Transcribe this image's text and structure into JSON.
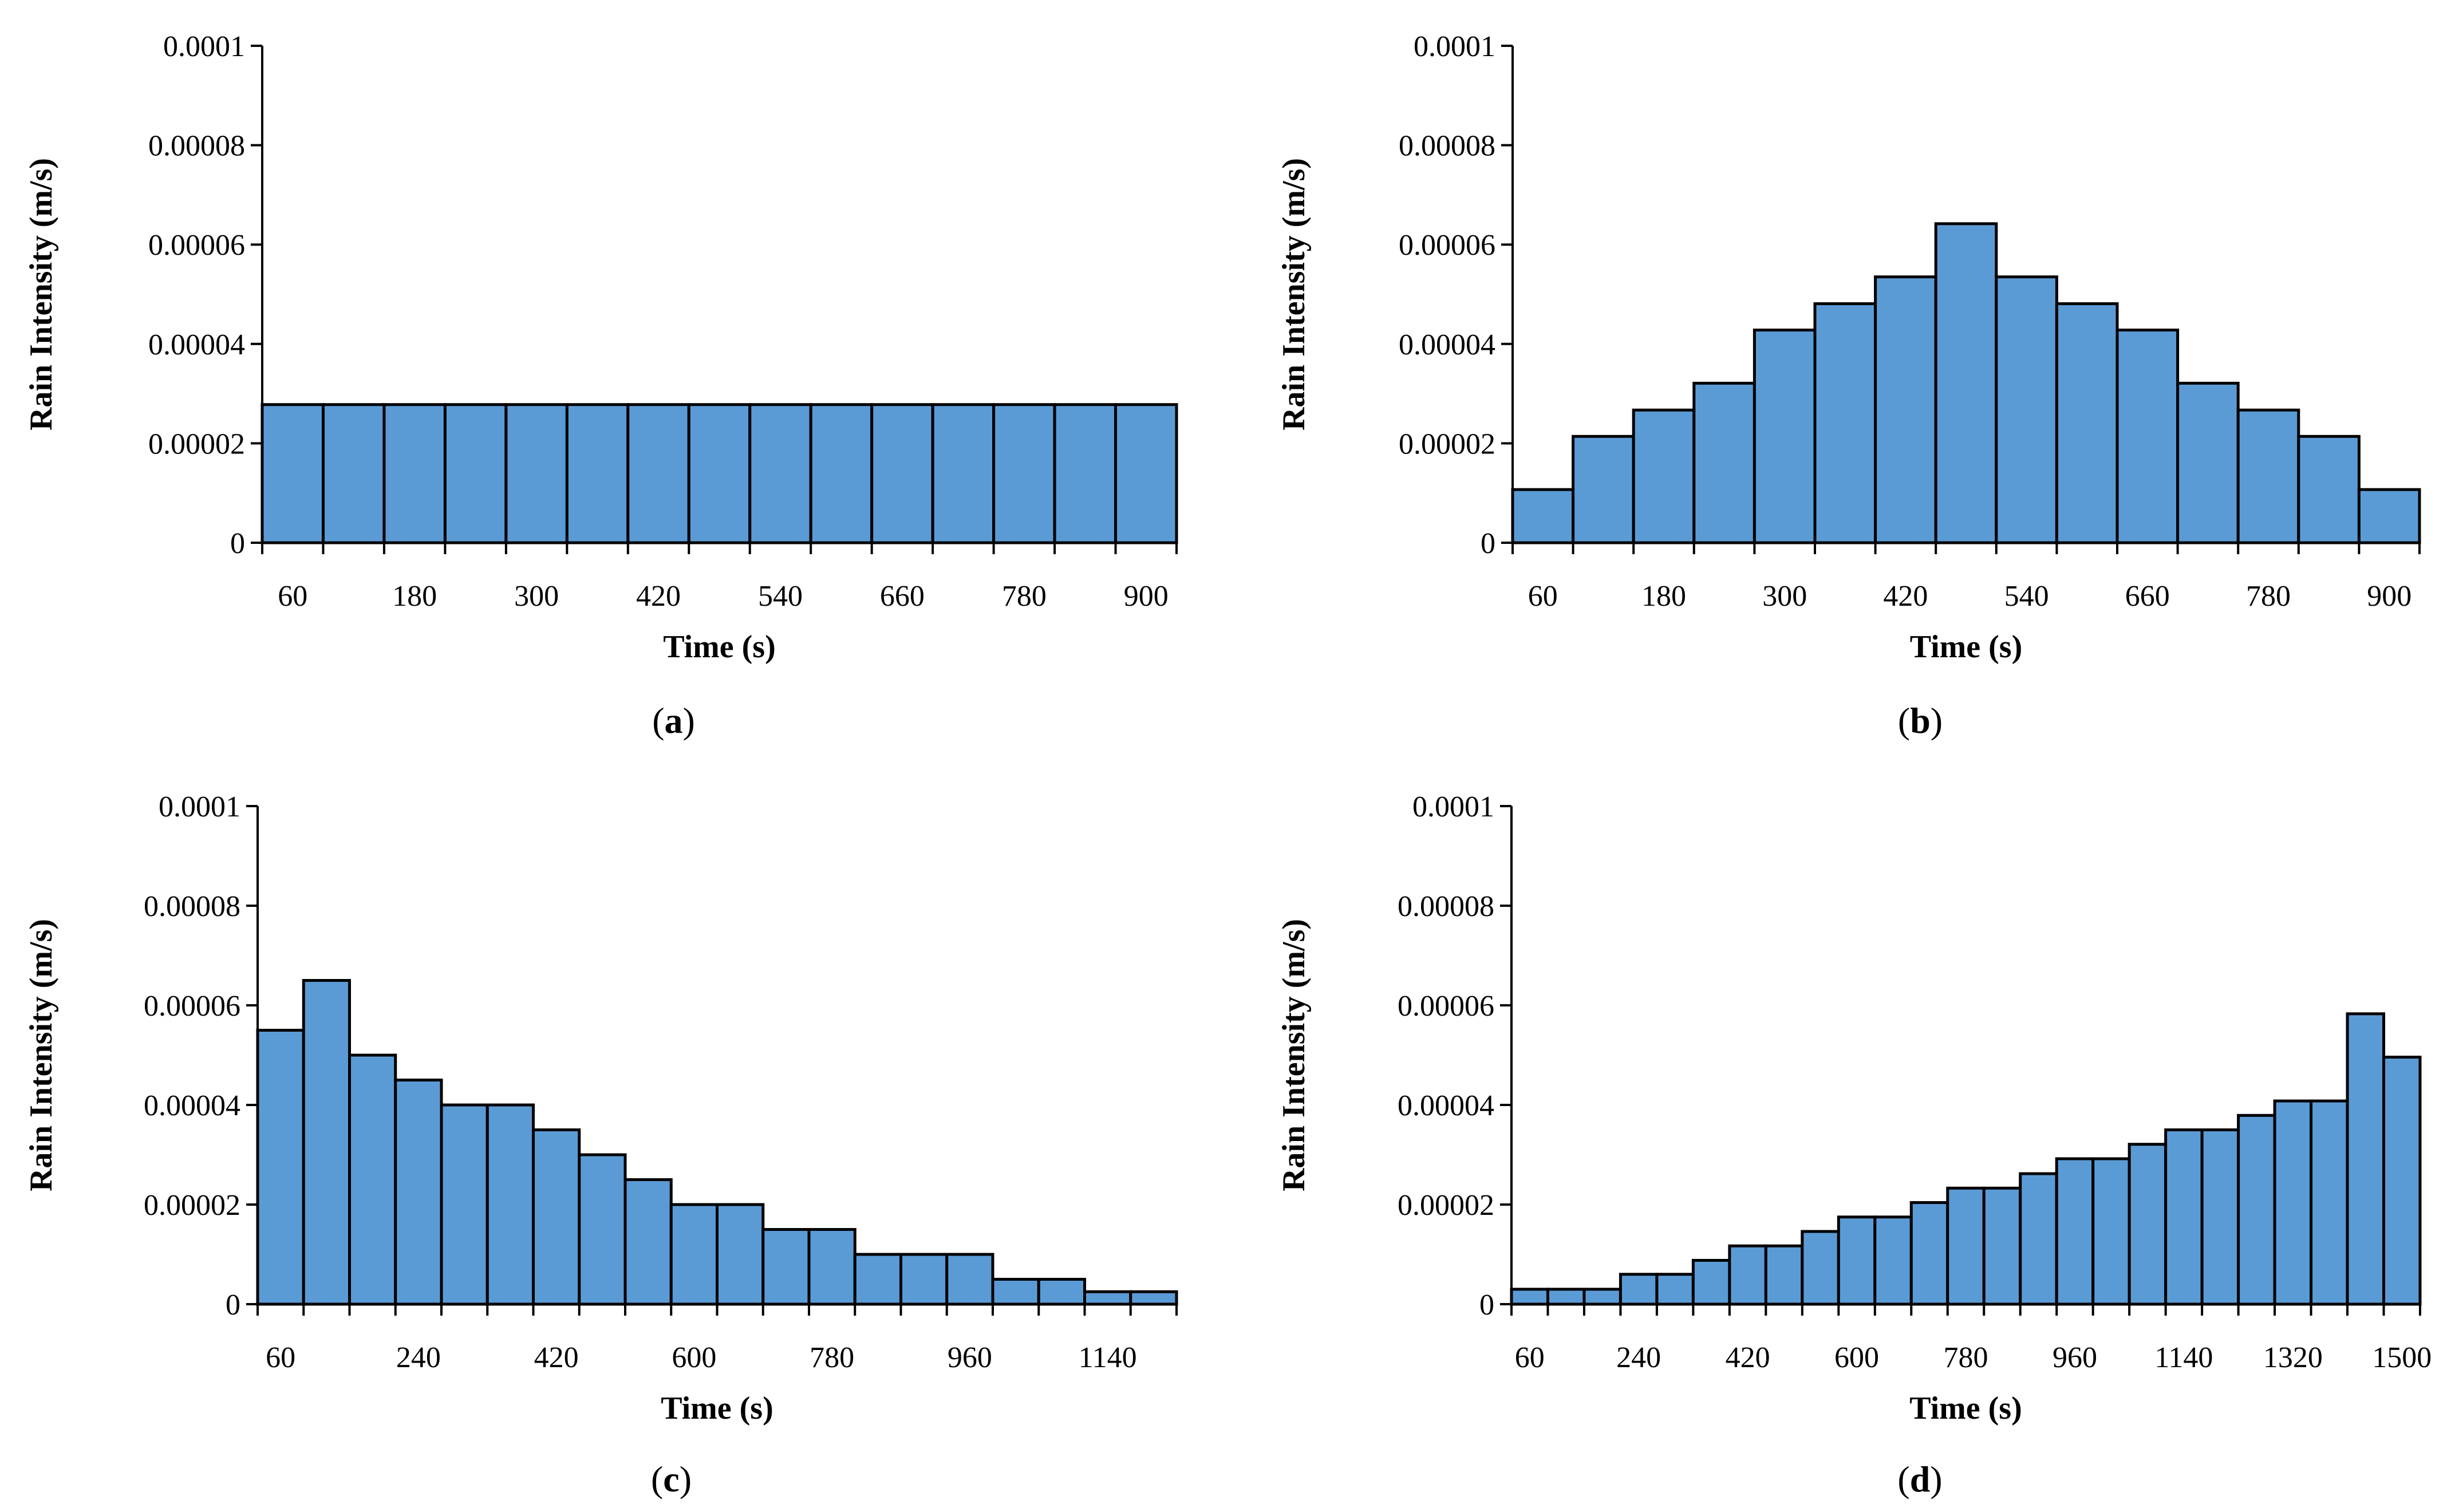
{
  "colors": {
    "bar_fill": "#5b9bd5",
    "bar_stroke": "#000000"
  },
  "chart_data": [
    {
      "id": "a",
      "type": "bar",
      "panel_label": "a",
      "xlabel": "Time (s)",
      "ylabel": "Rain Intensity (m/s)",
      "ylim": [
        0,
        0.0001
      ],
      "y_ticks": [
        "0",
        "0.00002",
        "0.00004",
        "0.00006",
        "0.00008",
        "0.0001"
      ],
      "x_ticks": [
        "60",
        "180",
        "300",
        "420",
        "540",
        "660",
        "780",
        "900"
      ],
      "bin_width": 60,
      "x_start": 0,
      "values": [
        2.78e-05,
        2.78e-05,
        2.78e-05,
        2.78e-05,
        2.78e-05,
        2.78e-05,
        2.78e-05,
        2.78e-05,
        2.78e-05,
        2.78e-05,
        2.78e-05,
        2.78e-05,
        2.78e-05,
        2.78e-05,
        2.78e-05
      ]
    },
    {
      "id": "b",
      "type": "bar",
      "panel_label": "b",
      "xlabel": "Time (s)",
      "ylabel": "Rain Intensity (m/s)",
      "ylim": [
        0,
        0.0001
      ],
      "y_ticks": [
        "0",
        "0.00002",
        "0.00004",
        "0.00006",
        "0.00008",
        "0.0001"
      ],
      "x_ticks": [
        "60",
        "180",
        "300",
        "420",
        "540",
        "660",
        "780",
        "900"
      ],
      "bin_width": 60,
      "x_start": 0,
      "values": [
        1.07e-05,
        2.14e-05,
        2.67e-05,
        3.21e-05,
        4.28e-05,
        4.81e-05,
        5.35e-05,
        6.42e-05,
        5.35e-05,
        4.81e-05,
        4.28e-05,
        3.21e-05,
        2.67e-05,
        2.14e-05,
        1.07e-05
      ]
    },
    {
      "id": "c",
      "type": "bar",
      "panel_label": "c",
      "xlabel": "Time (s)",
      "ylabel": "Rain Intensity (m/s)",
      "ylim": [
        0,
        0.0001
      ],
      "y_ticks": [
        "0",
        "0.00002",
        "0.00004",
        "0.00006",
        "0.00008",
        "0.0001"
      ],
      "x_ticks": [
        "60",
        "240",
        "420",
        "600",
        "780",
        "960",
        "1140"
      ],
      "bin_width": 60,
      "x_start": 0,
      "values": [
        5.5e-05,
        6.5e-05,
        5e-05,
        4.5e-05,
        4e-05,
        4e-05,
        3.5e-05,
        3e-05,
        2.5e-05,
        2e-05,
        2e-05,
        1.5e-05,
        1.5e-05,
        1e-05,
        1e-05,
        1e-05,
        5e-06,
        5e-06,
        2.5e-06,
        2.5e-06
      ]
    },
    {
      "id": "d",
      "type": "bar",
      "panel_label": "d",
      "xlabel": "Time (s)",
      "ylabel": "Rain Intensity (m/s)",
      "ylim": [
        0,
        0.0001
      ],
      "y_ticks": [
        "0",
        "0.00002",
        "0.00004",
        "0.00006",
        "0.00008",
        "0.0001"
      ],
      "x_ticks": [
        "60",
        "240",
        "420",
        "600",
        "780",
        "960",
        "1140",
        "1320",
        "1500"
      ],
      "bin_width": 60,
      "x_start": 0,
      "values": [
        3e-06,
        3e-06,
        3e-06,
        6e-06,
        6e-06,
        8.8e-06,
        1.17e-05,
        1.17e-05,
        1.46e-05,
        1.75e-05,
        1.75e-05,
        2.04e-05,
        2.33e-05,
        2.33e-05,
        2.62e-05,
        2.92e-05,
        2.92e-05,
        3.21e-05,
        3.5e-05,
        3.5e-05,
        3.79e-05,
        4.08e-05,
        4.08e-05,
        5.83e-05,
        4.96e-05
      ]
    }
  ]
}
